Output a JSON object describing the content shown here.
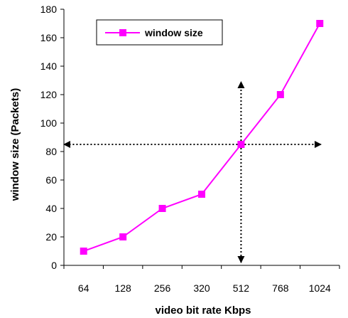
{
  "chart_data": {
    "type": "line",
    "categories": [
      "64",
      "128",
      "256",
      "320",
      "512",
      "768",
      "1024"
    ],
    "series": [
      {
        "name": "window size",
        "values": [
          10,
          20,
          40,
          50,
          85,
          120,
          170
        ]
      }
    ],
    "xlabel": "video bit rate Kbps",
    "ylabel": "window size (Packets)",
    "ylim": [
      0,
      180
    ],
    "yticks": [
      0,
      20,
      40,
      60,
      80,
      100,
      120,
      140,
      160,
      180
    ],
    "grid": false,
    "legend_position": "top-left",
    "series_color": "#ff00ff",
    "annotation": {
      "type": "crosshair-arrows",
      "x_category": "512",
      "y_value": 85
    }
  }
}
